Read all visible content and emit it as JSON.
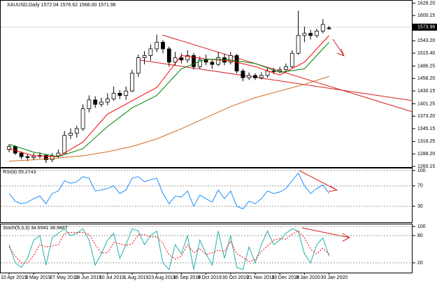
{
  "chart_data": [
    {
      "type": "candlestick",
      "title": "XAUUSD,Daily  1572.04 1576.62 1568.00 1571.96",
      "color": "#000000",
      "categories": [
        "10 Apr 2019",
        null,
        null,
        null,
        "3 May 2019",
        null,
        null,
        null,
        "27 May 2019",
        null,
        null,
        null,
        "18 Jun 2019",
        null,
        null,
        null,
        "10 Jul 2019",
        null,
        null,
        null,
        "1 Aug 2019",
        null,
        null,
        null,
        "23 Aug 2019",
        null,
        null,
        null,
        "16 Sep 2019",
        null,
        null,
        null,
        "8 Oct 2019",
        null,
        null,
        null,
        "30 Oct 2019",
        null,
        null,
        null,
        "21 Nov 2019",
        null,
        null,
        null,
        "13 Dec 2019",
        null,
        null,
        null,
        "8 Jan 2020",
        null,
        null,
        null,
        "30 Jan 2020"
      ],
      "open": [
        1298,
        1305,
        1290,
        1282,
        1280,
        1283,
        1285,
        1275,
        1284,
        1290,
        1330,
        1335,
        1345,
        1390,
        1410,
        1400,
        1405,
        1412,
        1425,
        1420,
        1430,
        1470,
        1505,
        1510,
        1525,
        1540,
        1525,
        1495,
        1505,
        1500,
        1510,
        1485,
        1500,
        1495,
        1490,
        1505,
        1495,
        1510,
        1475,
        1460,
        1465,
        1460,
        1465,
        1475,
        1475,
        1478,
        1485,
        1515,
        1555,
        1560,
        1555,
        1565,
        1572.04
      ],
      "high": [
        1310,
        1308,
        1294,
        1288,
        1290,
        1292,
        1288,
        1290,
        1298,
        1340,
        1346,
        1352,
        1400,
        1420,
        1418,
        1415,
        1425,
        1440,
        1432,
        1440,
        1478,
        1512,
        1520,
        1535,
        1557,
        1545,
        1530,
        1518,
        1515,
        1522,
        1516,
        1508,
        1512,
        1500,
        1518,
        1514,
        1518,
        1514,
        1480,
        1472,
        1470,
        1472,
        1482,
        1482,
        1484,
        1492,
        1522,
        1611,
        1575,
        1568,
        1570,
        1592,
        1576.62
      ],
      "low": [
        1292,
        1286,
        1276,
        1272,
        1275,
        1278,
        1268,
        1270,
        1280,
        1288,
        1322,
        1325,
        1340,
        1382,
        1392,
        1394,
        1398,
        1408,
        1412,
        1410,
        1428,
        1462,
        1490,
        1498,
        1518,
        1515,
        1485,
        1488,
        1492,
        1494,
        1478,
        1480,
        1488,
        1480,
        1486,
        1488,
        1490,
        1470,
        1452,
        1455,
        1455,
        1456,
        1460,
        1468,
        1470,
        1474,
        1482,
        1512,
        1540,
        1546,
        1550,
        1560,
        1568.0
      ],
      "close": [
        1305,
        1290,
        1282,
        1280,
        1283,
        1285,
        1275,
        1284,
        1290,
        1330,
        1335,
        1345,
        1390,
        1410,
        1400,
        1405,
        1412,
        1425,
        1420,
        1430,
        1470,
        1505,
        1510,
        1525,
        1540,
        1525,
        1495,
        1505,
        1500,
        1510,
        1485,
        1500,
        1495,
        1490,
        1505,
        1495,
        1510,
        1475,
        1460,
        1465,
        1460,
        1465,
        1475,
        1475,
        1478,
        1485,
        1515,
        1555,
        1560,
        1555,
        1565,
        1580,
        1571.96
      ],
      "overlays": [
        {
          "color": "#ff0000",
          "x": [
            0,
            4,
            8,
            12,
            16,
            20,
            24,
            28,
            32,
            36,
            40,
            44,
            48,
            52
          ],
          "values": [
            1300,
            1284,
            1282,
            1315,
            1378,
            1408,
            1438,
            1510,
            1502,
            1498,
            1485,
            1466,
            1495,
            1555
          ]
        },
        {
          "color": "#008000",
          "x": [
            0,
            4,
            8,
            12,
            16,
            20,
            24,
            28,
            32,
            36,
            40,
            44,
            48,
            52
          ],
          "values": [
            1310,
            1292,
            1282,
            1300,
            1350,
            1392,
            1420,
            1480,
            1502,
            1500,
            1492,
            1472,
            1480,
            1540
          ]
        },
        {
          "color": "#d2691e",
          "x": [
            0,
            4,
            8,
            12,
            16,
            20,
            24,
            28,
            32,
            36,
            40,
            44,
            48,
            52
          ],
          "values": [
            1272,
            1275,
            1279,
            1284,
            1293,
            1305,
            1322,
            1345,
            1370,
            1395,
            1415,
            1430,
            1445,
            1463
          ]
        }
      ],
      "current_price": 1573.96,
      "ylim": [
        1257,
        1632
      ],
      "yticks": [
        {
          "value": 1628.2,
          "label": "1628.20"
        },
        {
          "value": 1600.15,
          "label": "1600.15"
        },
        {
          "value": 1543.2,
          "label": "1543.20"
        },
        {
          "value": 1515.4,
          "label": "1515.40"
        },
        {
          "value": 1486.25,
          "label": "1486.25"
        },
        {
          "value": 1458.2,
          "label": "1458.20"
        },
        {
          "value": 1430.15,
          "label": "1430.15"
        },
        {
          "value": 1401.25,
          "label": "1401.25"
        },
        {
          "value": 1373.2,
          "label": "1373.20"
        },
        {
          "value": 1345.15,
          "label": "1345.15"
        },
        {
          "value": 1316.25,
          "label": "1316.25"
        },
        {
          "value": 1288.2,
          "label": "1288.20"
        },
        {
          "value": 1260.15,
          "label": "1260.15"
        }
      ]
    },
    {
      "type": "line",
      "title": "RSI(8) 55.2743",
      "grid": true,
      "series": [
        {
          "color": "#1e90ff",
          "style": "solid",
          "values": [
            55,
            40,
            35,
            38,
            45,
            50,
            35,
            55,
            60,
            80,
            75,
            78,
            88,
            85,
            60,
            62,
            65,
            70,
            55,
            62,
            85,
            88,
            78,
            82,
            85,
            55,
            35,
            50,
            48,
            60,
            30,
            52,
            45,
            38,
            62,
            45,
            60,
            30,
            25,
            40,
            35,
            45,
            60,
            55,
            58,
            65,
            80,
            95,
            70,
            55,
            65,
            72,
            55.27
          ]
        }
      ],
      "ylim": [
        0,
        100
      ],
      "yticks": [
        30,
        70,
        100
      ]
    },
    {
      "type": "line",
      "title": "Stoch(5,3,3) 34.6541 38.9487",
      "grid": true,
      "series": [
        {
          "color": "#20b2aa",
          "style": "solid",
          "values": [
            60,
            20,
            10,
            30,
            70,
            80,
            15,
            75,
            85,
            95,
            80,
            85,
            95,
            70,
            15,
            40,
            70,
            85,
            30,
            60,
            95,
            90,
            60,
            80,
            90,
            20,
            5,
            60,
            40,
            80,
            5,
            70,
            40,
            15,
            90,
            30,
            80,
            10,
            5,
            55,
            20,
            60,
            90,
            60,
            70,
            85,
            95,
            90,
            40,
            20,
            60,
            75,
            34.65
          ]
        },
        {
          "color": "#ff0000",
          "style": "dashed",
          "values": [
            55,
            35,
            20,
            20,
            37,
            60,
            55,
            57,
            60,
            85,
            87,
            87,
            87,
            83,
            60,
            42,
            42,
            65,
            62,
            58,
            62,
            82,
            82,
            77,
            77,
            63,
            38,
            28,
            35,
            60,
            42,
            52,
            38,
            42,
            48,
            45,
            67,
            40,
            32,
            23,
            27,
            45,
            57,
            70,
            73,
            72,
            83,
            90,
            75,
            50,
            40,
            52,
            38.95
          ]
        }
      ],
      "ylim": [
        0,
        100
      ],
      "yticks": [
        20,
        80,
        100
      ]
    }
  ]
}
